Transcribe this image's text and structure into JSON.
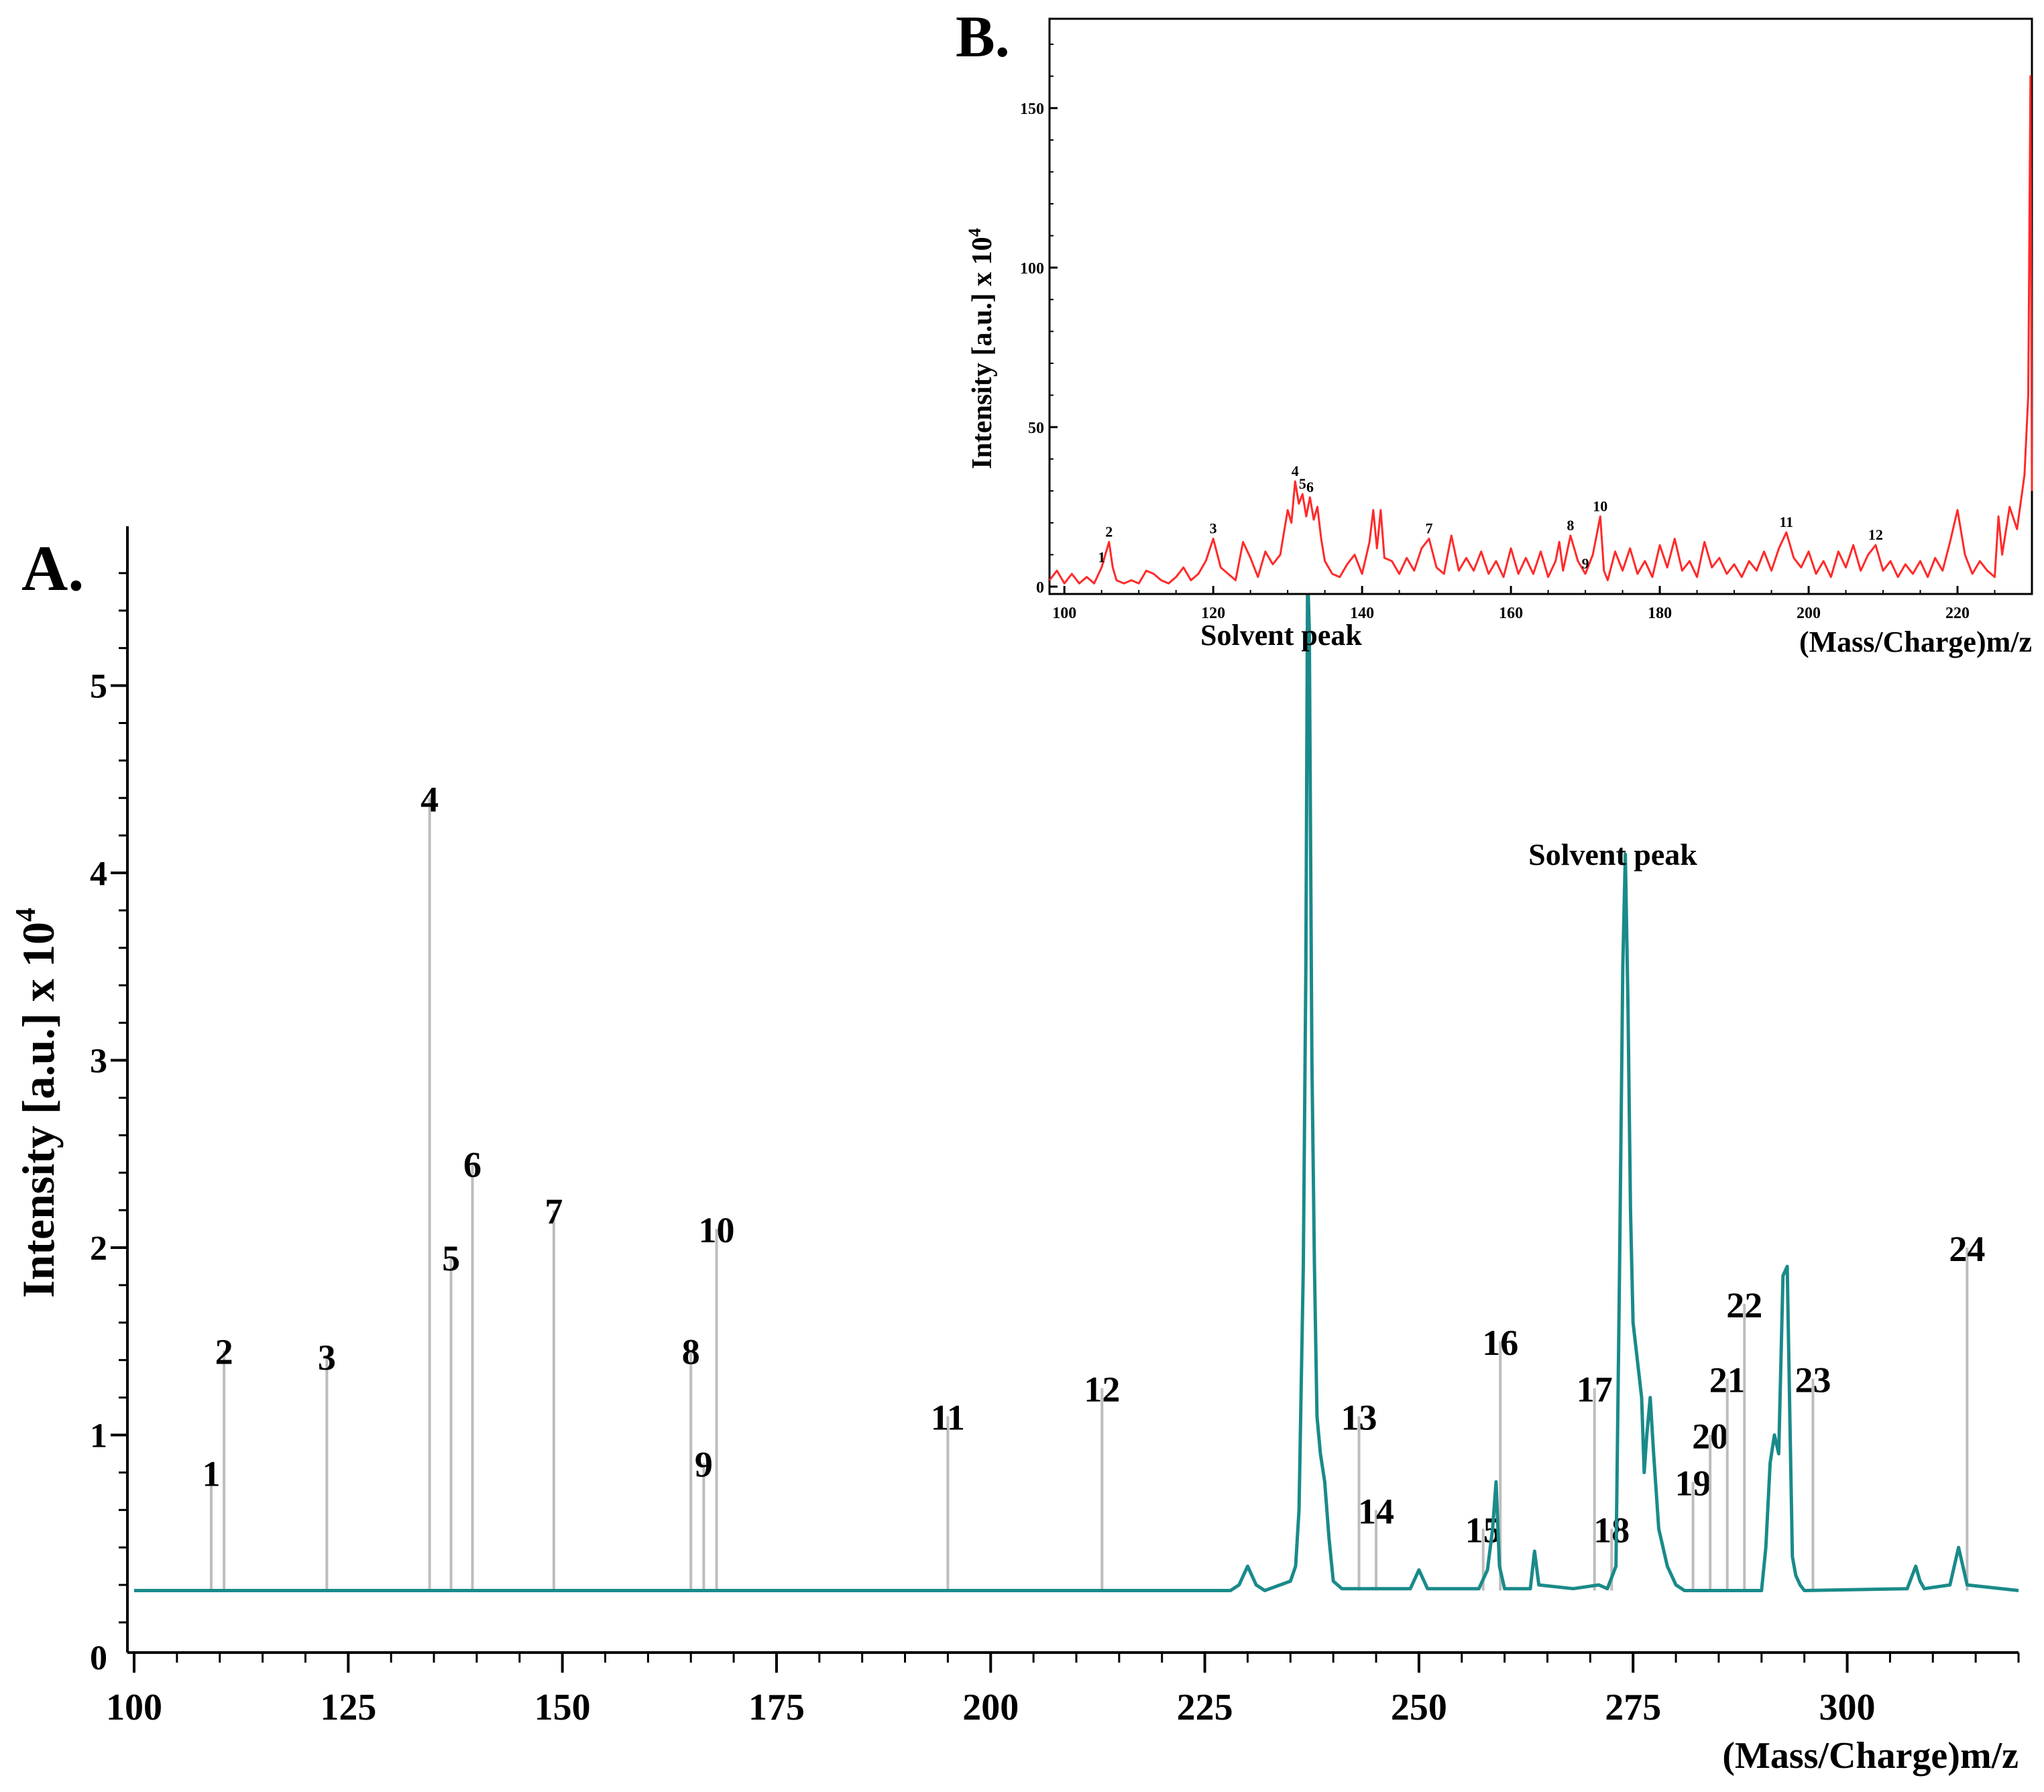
{
  "chart_data": [
    {
      "panel": "A.",
      "type": "line",
      "title": "",
      "xlabel": "(Mass/Charge)m/z",
      "ylabel": "Intensity [a.u.] x 10",
      "ylabel_exp": "4",
      "xlim": [
        100,
        320
      ],
      "ylim": [
        0,
        5.85
      ],
      "xticks": [
        "100",
        "125",
        "150",
        "175",
        "200",
        "225",
        "250",
        "275",
        "300"
      ],
      "yticks": [
        "0",
        "1",
        "2",
        "3",
        "4",
        "5"
      ],
      "series_color": "#1a8a8a",
      "annotation": {
        "text": "Solvent peak",
        "x": 274,
        "y": 4.3
      },
      "spectrum": [
        [
          100,
          0.17
        ],
        [
          228,
          0.17
        ],
        [
          229,
          0.2
        ],
        [
          230,
          0.3
        ],
        [
          231,
          0.2
        ],
        [
          232,
          0.17
        ],
        [
          235,
          0.22
        ],
        [
          235.6,
          0.3
        ],
        [
          236,
          0.6
        ],
        [
          236.5,
          1.9
        ],
        [
          236.8,
          3.5
        ],
        [
          237,
          5.6
        ],
        [
          237.2,
          5.3
        ],
        [
          237.5,
          3.0
        ],
        [
          237.8,
          1.9
        ],
        [
          238.1,
          1.1
        ],
        [
          238.5,
          0.9
        ],
        [
          239,
          0.75
        ],
        [
          239.5,
          0.45
        ],
        [
          240,
          0.22
        ],
        [
          241,
          0.18
        ],
        [
          249,
          0.18
        ],
        [
          250,
          0.28
        ],
        [
          251,
          0.18
        ],
        [
          257,
          0.18
        ],
        [
          258,
          0.28
        ],
        [
          258.6,
          0.5
        ],
        [
          259,
          0.75
        ],
        [
          259.4,
          0.3
        ],
        [
          260,
          0.18
        ],
        [
          263,
          0.18
        ],
        [
          263.5,
          0.38
        ],
        [
          264,
          0.2
        ],
        [
          268,
          0.18
        ],
        [
          271,
          0.2
        ],
        [
          272,
          0.18
        ],
        [
          273,
          0.3
        ],
        [
          273.4,
          1.8
        ],
        [
          273.8,
          3.5
        ],
        [
          274.1,
          4.1
        ],
        [
          274.4,
          3.3
        ],
        [
          274.7,
          2.2
        ],
        [
          275,
          1.6
        ],
        [
          275.5,
          1.4
        ],
        [
          276,
          1.2
        ],
        [
          276.3,
          0.8
        ],
        [
          276.6,
          1.0
        ],
        [
          277,
          1.2
        ],
        [
          277.4,
          0.9
        ],
        [
          278,
          0.5
        ],
        [
          279,
          0.3
        ],
        [
          280,
          0.2
        ],
        [
          281,
          0.17
        ],
        [
          290,
          0.17
        ],
        [
          290.5,
          0.4
        ],
        [
          291,
          0.85
        ],
        [
          291.5,
          1.0
        ],
        [
          292,
          0.9
        ],
        [
          292.5,
          1.85
        ],
        [
          293,
          1.9
        ],
        [
          293.3,
          1.1
        ],
        [
          293.6,
          0.35
        ],
        [
          294,
          0.25
        ],
        [
          294.5,
          0.2
        ],
        [
          295,
          0.17
        ],
        [
          307,
          0.18
        ],
        [
          308,
          0.3
        ],
        [
          308.5,
          0.22
        ],
        [
          309,
          0.18
        ],
        [
          312,
          0.2
        ],
        [
          313,
          0.4
        ],
        [
          313.5,
          0.3
        ],
        [
          314,
          0.2
        ],
        [
          320,
          0.17
        ]
      ],
      "peaks": [
        {
          "label": "1",
          "mz": 109,
          "height": 0.8
        },
        {
          "label": "2",
          "mz": 110.5,
          "height": 1.45
        },
        {
          "label": "3",
          "mz": 122.5,
          "height": 1.42
        },
        {
          "label": "4",
          "mz": 134.5,
          "height": 4.4
        },
        {
          "label": "5",
          "mz": 137,
          "height": 1.95
        },
        {
          "label": "6",
          "mz": 139.5,
          "height": 2.45
        },
        {
          "label": "7",
          "mz": 149,
          "height": 2.2
        },
        {
          "label": "8",
          "mz": 165,
          "height": 1.45
        },
        {
          "label": "9",
          "mz": 166.5,
          "height": 0.85
        },
        {
          "label": "10",
          "mz": 168,
          "height": 2.1
        },
        {
          "label": "11",
          "mz": 195,
          "height": 1.1
        },
        {
          "label": "12",
          "mz": 213,
          "height": 1.25
        },
        {
          "label": "13",
          "mz": 243,
          "height": 1.1
        },
        {
          "label": "14",
          "mz": 245,
          "height": 0.6
        },
        {
          "label": "15",
          "mz": 257.5,
          "height": 0.5
        },
        {
          "label": "16",
          "mz": 259.5,
          "height": 1.5
        },
        {
          "label": "17",
          "mz": 270.5,
          "height": 1.25
        },
        {
          "label": "18",
          "mz": 272.5,
          "height": 0.5
        },
        {
          "label": "19",
          "mz": 282,
          "height": 0.75
        },
        {
          "label": "20",
          "mz": 284,
          "height": 1.0
        },
        {
          "label": "21",
          "mz": 286,
          "height": 1.3
        },
        {
          "label": "22",
          "mz": 288,
          "height": 1.7
        },
        {
          "label": "23",
          "mz": 296,
          "height": 1.3
        },
        {
          "label": "24",
          "mz": 314,
          "height": 2.0
        }
      ]
    },
    {
      "panel": "B.",
      "type": "line",
      "title": "",
      "xlabel": "(Mass/Charge)m/z",
      "ylabel": "Intensity [a.u.] x 10",
      "ylabel_exp": "4",
      "xlim": [
        98,
        230
      ],
      "ylim": [
        0,
        178
      ],
      "xticks": [
        "100",
        "120",
        "140",
        "160",
        "180",
        "200",
        "220"
      ],
      "yticks": [
        "0",
        "50",
        "100",
        "150"
      ],
      "series_color": "#ff2a2a",
      "annotation": {
        "text": "Solvent peak"
      },
      "spectrum": [
        [
          98,
          2
        ],
        [
          99,
          5
        ],
        [
          100,
          1
        ],
        [
          101,
          4
        ],
        [
          102,
          1
        ],
        [
          103,
          3
        ],
        [
          104,
          1
        ],
        [
          105,
          6
        ],
        [
          105.5,
          10
        ],
        [
          106,
          14
        ],
        [
          106.5,
          6
        ],
        [
          107,
          2
        ],
        [
          108,
          1
        ],
        [
          109,
          2
        ],
        [
          110,
          1
        ],
        [
          111,
          5
        ],
        [
          112,
          4
        ],
        [
          113,
          2
        ],
        [
          114,
          1
        ],
        [
          115,
          3
        ],
        [
          116,
          6
        ],
        [
          117,
          2
        ],
        [
          118,
          4
        ],
        [
          119,
          8
        ],
        [
          120,
          15
        ],
        [
          121,
          6
        ],
        [
          122,
          4
        ],
        [
          123,
          2
        ],
        [
          124,
          14
        ],
        [
          125,
          9
        ],
        [
          126,
          3
        ],
        [
          127,
          11
        ],
        [
          128,
          7
        ],
        [
          129,
          10
        ],
        [
          130,
          24
        ],
        [
          130.5,
          20
        ],
        [
          131,
          33
        ],
        [
          131.5,
          26
        ],
        [
          132,
          29
        ],
        [
          132.5,
          22
        ],
        [
          133,
          28
        ],
        [
          133.5,
          21
        ],
        [
          134,
          25
        ],
        [
          134.5,
          15
        ],
        [
          135,
          8
        ],
        [
          136,
          4
        ],
        [
          137,
          3
        ],
        [
          138,
          7
        ],
        [
          139,
          10
        ],
        [
          140,
          4
        ],
        [
          141,
          14
        ],
        [
          141.5,
          24
        ],
        [
          142,
          12
        ],
        [
          142.5,
          24
        ],
        [
          143,
          9
        ],
        [
          144,
          8
        ],
        [
          145,
          4
        ],
        [
          146,
          9
        ],
        [
          147,
          5
        ],
        [
          148,
          12
        ],
        [
          149,
          15
        ],
        [
          150,
          6
        ],
        [
          151,
          4
        ],
        [
          152,
          16
        ],
        [
          153,
          5
        ],
        [
          154,
          9
        ],
        [
          155,
          5
        ],
        [
          156,
          11
        ],
        [
          157,
          4
        ],
        [
          158,
          8
        ],
        [
          159,
          3
        ],
        [
          160,
          12
        ],
        [
          161,
          4
        ],
        [
          162,
          9
        ],
        [
          163,
          4
        ],
        [
          164,
          11
        ],
        [
          165,
          3
        ],
        [
          166,
          8
        ],
        [
          166.5,
          14
        ],
        [
          167,
          5
        ],
        [
          168,
          16
        ],
        [
          169,
          8
        ],
        [
          170,
          4
        ],
        [
          171,
          10
        ],
        [
          172,
          22
        ],
        [
          172.5,
          5
        ],
        [
          173,
          2
        ],
        [
          174,
          11
        ],
        [
          175,
          5
        ],
        [
          176,
          12
        ],
        [
          177,
          4
        ],
        [
          178,
          8
        ],
        [
          179,
          3
        ],
        [
          180,
          13
        ],
        [
          181,
          6
        ],
        [
          182,
          15
        ],
        [
          183,
          5
        ],
        [
          184,
          8
        ],
        [
          185,
          3
        ],
        [
          186,
          14
        ],
        [
          187,
          6
        ],
        [
          188,
          9
        ],
        [
          189,
          4
        ],
        [
          190,
          7
        ],
        [
          191,
          3
        ],
        [
          192,
          8
        ],
        [
          193,
          5
        ],
        [
          194,
          11
        ],
        [
          195,
          5
        ],
        [
          196,
          12
        ],
        [
          197,
          17
        ],
        [
          198,
          9
        ],
        [
          199,
          6
        ],
        [
          200,
          11
        ],
        [
          201,
          4
        ],
        [
          202,
          8
        ],
        [
          203,
          3
        ],
        [
          204,
          11
        ],
        [
          205,
          6
        ],
        [
          206,
          13
        ],
        [
          207,
          5
        ],
        [
          208,
          10
        ],
        [
          209,
          13
        ],
        [
          210,
          5
        ],
        [
          211,
          8
        ],
        [
          212,
          3
        ],
        [
          213,
          7
        ],
        [
          214,
          4
        ],
        [
          215,
          8
        ],
        [
          216,
          3
        ],
        [
          217,
          9
        ],
        [
          218,
          5
        ],
        [
          219,
          14
        ],
        [
          220,
          24
        ],
        [
          221,
          10
        ],
        [
          222,
          4
        ],
        [
          223,
          8
        ],
        [
          224,
          5
        ],
        [
          225,
          3
        ],
        [
          225.5,
          22
        ],
        [
          226,
          10
        ],
        [
          227,
          25
        ],
        [
          228,
          18
        ],
        [
          229,
          35
        ],
        [
          229.5,
          60
        ],
        [
          229.8,
          160
        ],
        [
          230,
          30
        ]
      ],
      "peaks": [
        {
          "label": "1",
          "mz": 105
        },
        {
          "label": "2",
          "mz": 106
        },
        {
          "label": "3",
          "mz": 120
        },
        {
          "label": "4",
          "mz": 131
        },
        {
          "label": "5",
          "mz": 132
        },
        {
          "label": "6",
          "mz": 133
        },
        {
          "label": "7",
          "mz": 149
        },
        {
          "label": "8",
          "mz": 168
        },
        {
          "label": "9",
          "mz": 170
        },
        {
          "label": "10",
          "mz": 172
        },
        {
          "label": "11",
          "mz": 197
        },
        {
          "label": "12",
          "mz": 209
        }
      ]
    }
  ]
}
